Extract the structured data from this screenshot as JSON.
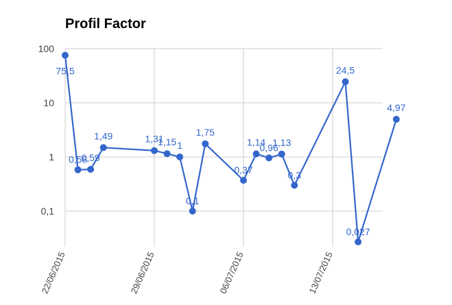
{
  "chart_data": {
    "type": "line",
    "title": "Profil Factor",
    "xlabel": "",
    "ylabel": "",
    "y_scale": "log",
    "ylim": [
      0.02,
      100
    ],
    "y_ticks": [
      {
        "value": 100,
        "label": "100"
      },
      {
        "value": 10,
        "label": "10"
      },
      {
        "value": 1,
        "label": "1"
      },
      {
        "value": 0.1,
        "label": "0,1"
      }
    ],
    "x_ticks": [
      {
        "x": "2015-06-22",
        "label": "22/06/2015"
      },
      {
        "x": "2015-06-29",
        "label": "29/06/2015"
      },
      {
        "x": "2015-07-06",
        "label": "06/07/2015"
      },
      {
        "x": "2015-07-13",
        "label": "13/07/2015"
      }
    ],
    "x_range": [
      "2015-06-22",
      "2015-07-16"
    ],
    "grid": true,
    "legend": "none",
    "series": [
      {
        "color": "#3366cc",
        "points": [
          {
            "x": "2015-06-22",
            "y": 75.5,
            "label": "75,5"
          },
          {
            "x": "2015-06-23",
            "y": 0.58,
            "label": "0,58"
          },
          {
            "x": "2015-06-24",
            "y": 0.59,
            "label": "0,59"
          },
          {
            "x": "2015-06-25",
            "y": 1.49,
            "label": "1,49"
          },
          {
            "x": "2015-06-29",
            "y": 1.31,
            "label": "1,31"
          },
          {
            "x": "2015-06-30",
            "y": 1.15,
            "label": "1,15"
          },
          {
            "x": "2015-07-01",
            "y": 1.0,
            "label": "1"
          },
          {
            "x": "2015-07-02",
            "y": 0.1,
            "label": "0,1"
          },
          {
            "x": "2015-07-03",
            "y": 1.75,
            "label": "1,75"
          },
          {
            "x": "2015-07-06",
            "y": 0.37,
            "label": "0,37"
          },
          {
            "x": "2015-07-07",
            "y": 1.14,
            "label": "1,14"
          },
          {
            "x": "2015-07-08",
            "y": 0.96,
            "label": "0,96"
          },
          {
            "x": "2015-07-09",
            "y": 1.13,
            "label": "1,13"
          },
          {
            "x": "2015-07-10",
            "y": 0.3,
            "label": "0,3"
          },
          {
            "x": "2015-07-14",
            "y": 24.5,
            "label": "24,5"
          },
          {
            "x": "2015-07-15",
            "y": 0.027,
            "label": "0,027"
          },
          {
            "x": "2015-07-18",
            "y": 4.97,
            "label": "4,97"
          }
        ]
      }
    ]
  },
  "colors": {
    "series": "#3366cc",
    "grid": "#cccccc",
    "axis_text": "#444444",
    "title": "#000000"
  }
}
